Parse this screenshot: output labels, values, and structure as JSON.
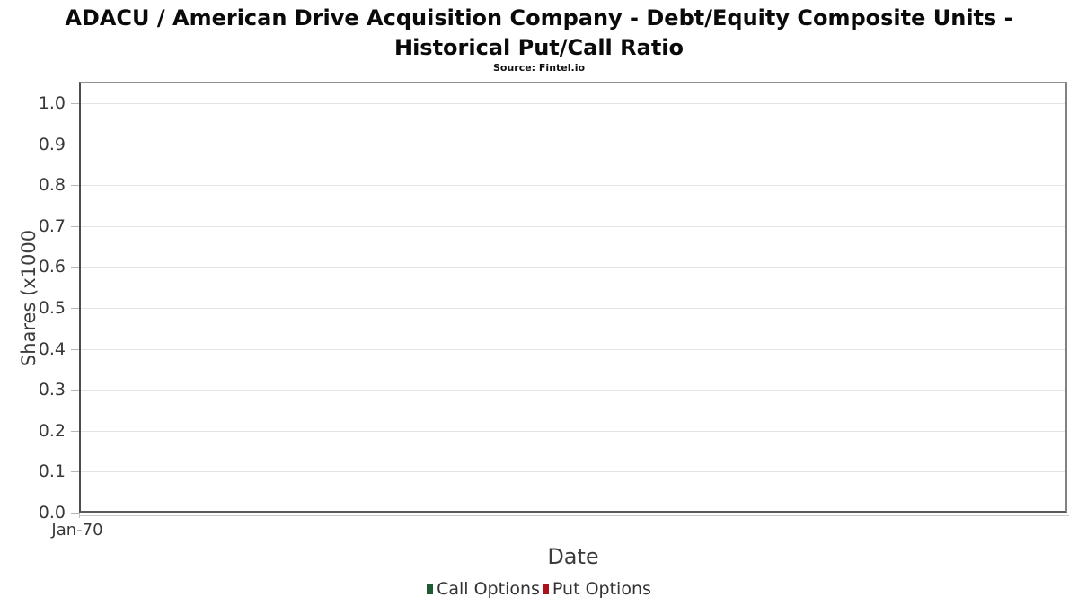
{
  "title": "ADACU / American Drive Acquisition Company - Debt/Equity Composite Units - Historical Put/Call Ratio",
  "subtitle": "Source: Fintel.io",
  "chart_data": {
    "type": "line",
    "title": "ADACU / American Drive Acquisition Company - Debt/Equity Composite Units - Historical Put/Call Ratio",
    "subtitle": "Source: Fintel.io",
    "xlabel": "Date",
    "ylabel": "Shares (x1000",
    "ylim": [
      0.0,
      1.05
    ],
    "ytick_values": [
      0.0,
      0.1,
      0.2,
      0.3,
      0.4,
      0.5,
      0.6,
      0.7,
      0.8,
      0.9,
      1.0
    ],
    "ytick_labels": [
      "0.0",
      "0.1",
      "0.2",
      "0.3",
      "0.4",
      "0.5",
      "0.6",
      "0.7",
      "0.8",
      "0.9",
      "1.0"
    ],
    "xtick_labels": [
      "Jan-70"
    ],
    "grid": "horizontal",
    "legend_position": "bottom-center",
    "plot_is_empty": true,
    "series": [
      {
        "name": "Call Options",
        "color": "#1e5a32",
        "x": [],
        "values": []
      },
      {
        "name": "Put Options",
        "color": "#a91319",
        "x": [],
        "values": []
      }
    ]
  }
}
